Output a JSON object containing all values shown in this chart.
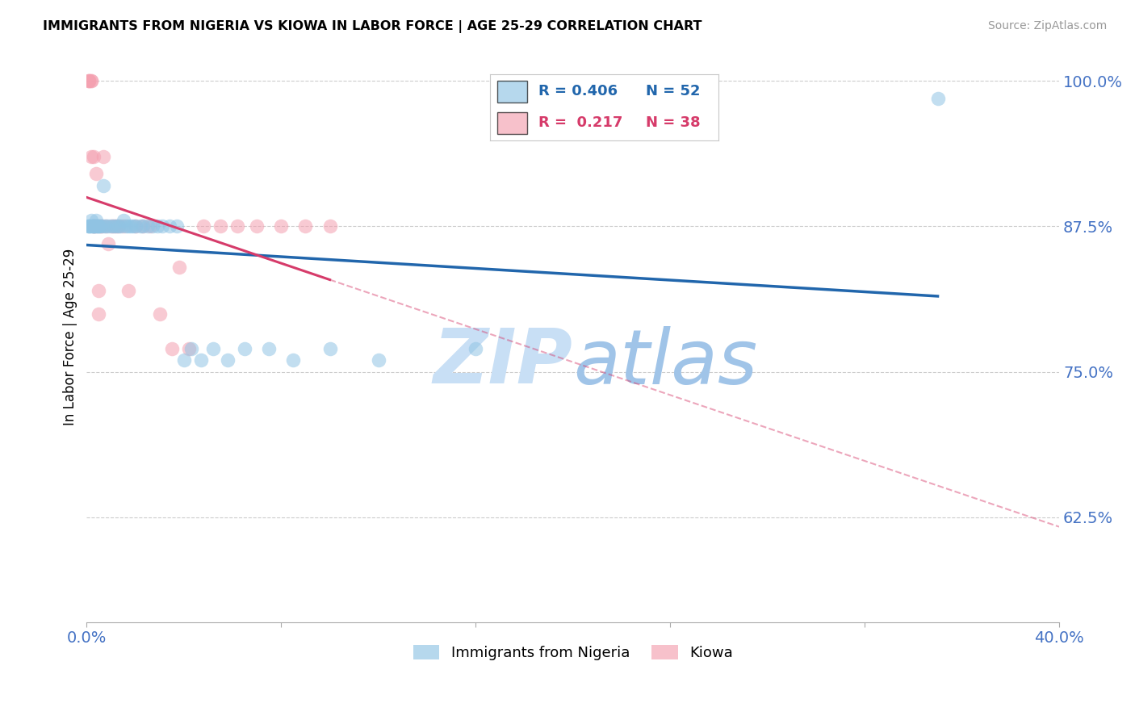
{
  "title": "IMMIGRANTS FROM NIGERIA VS KIOWA IN LABOR FORCE | AGE 25-29 CORRELATION CHART",
  "source": "Source: ZipAtlas.com",
  "ylabel": "In Labor Force | Age 25-29",
  "xlim": [
    0.0,
    0.4
  ],
  "ylim": [
    0.535,
    1.025
  ],
  "yticks": [
    0.625,
    0.75,
    0.875,
    1.0
  ],
  "ytick_labels": [
    "62.5%",
    "75.0%",
    "87.5%",
    "100.0%"
  ],
  "xtick_positions": [
    0.0,
    0.08,
    0.16,
    0.24,
    0.32,
    0.4
  ],
  "xtick_labels": [
    "0.0%",
    "",
    "",
    "",
    "",
    "40.0%"
  ],
  "legend_r1": "0.406",
  "legend_n1": "52",
  "legend_r2": "0.217",
  "legend_n2": "38",
  "color_nigeria": "#90c4e4",
  "color_kiowa": "#f4a0b0",
  "color_line_nigeria": "#2166ac",
  "color_line_kiowa": "#d63b6a",
  "color_tick": "#4472c4",
  "watermark_zip_color": "#c8dff5",
  "watermark_atlas_color": "#a0c4e8",
  "nigeria_x": [
    0.001,
    0.001,
    0.001,
    0.002,
    0.002,
    0.002,
    0.003,
    0.003,
    0.003,
    0.003,
    0.004,
    0.004,
    0.004,
    0.005,
    0.005,
    0.005,
    0.006,
    0.007,
    0.007,
    0.008,
    0.009,
    0.01,
    0.011,
    0.012,
    0.013,
    0.014,
    0.015,
    0.016,
    0.017,
    0.018,
    0.019,
    0.02,
    0.022,
    0.023,
    0.025,
    0.027,
    0.029,
    0.031,
    0.034,
    0.037,
    0.04,
    0.043,
    0.047,
    0.052,
    0.058,
    0.065,
    0.075,
    0.085,
    0.1,
    0.12,
    0.16,
    0.35
  ],
  "nigeria_y": [
    0.875,
    0.875,
    0.875,
    0.875,
    0.875,
    0.88,
    0.875,
    0.875,
    0.875,
    0.875,
    0.875,
    0.875,
    0.88,
    0.875,
    0.875,
    0.875,
    0.875,
    0.91,
    0.875,
    0.875,
    0.875,
    0.875,
    0.875,
    0.875,
    0.875,
    0.875,
    0.88,
    0.875,
    0.875,
    0.875,
    0.875,
    0.875,
    0.875,
    0.875,
    0.875,
    0.875,
    0.875,
    0.875,
    0.875,
    0.875,
    0.76,
    0.77,
    0.76,
    0.77,
    0.76,
    0.77,
    0.77,
    0.76,
    0.77,
    0.76,
    0.77,
    0.985
  ],
  "kiowa_x": [
    0.001,
    0.001,
    0.001,
    0.002,
    0.002,
    0.002,
    0.003,
    0.003,
    0.003,
    0.004,
    0.004,
    0.005,
    0.005,
    0.006,
    0.006,
    0.007,
    0.008,
    0.009,
    0.01,
    0.011,
    0.012,
    0.013,
    0.015,
    0.017,
    0.02,
    0.023,
    0.026,
    0.03,
    0.035,
    0.038,
    0.042,
    0.048,
    0.055,
    0.062,
    0.07,
    0.08,
    0.09,
    0.1
  ],
  "kiowa_y": [
    1.0,
    1.0,
    1.0,
    1.0,
    1.0,
    0.935,
    0.935,
    0.875,
    0.875,
    0.875,
    0.92,
    0.82,
    0.8,
    0.875,
    0.875,
    0.935,
    0.875,
    0.86,
    0.875,
    0.875,
    0.875,
    0.875,
    0.875,
    0.82,
    0.875,
    0.875,
    0.875,
    0.8,
    0.77,
    0.84,
    0.77,
    0.875,
    0.875,
    0.875,
    0.875,
    0.875,
    0.875,
    0.875
  ]
}
